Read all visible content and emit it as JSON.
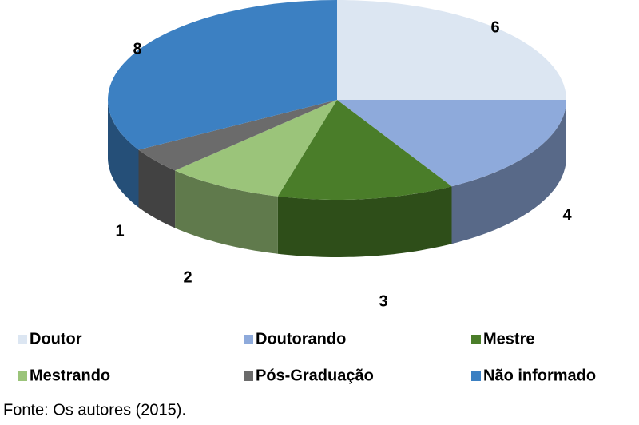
{
  "chart_data": {
    "type": "pie",
    "categories": [
      "Doutor",
      "Doutorando",
      "Mestre",
      "Mestrando",
      "Pós-Graduação",
      "Não informado"
    ],
    "values": [
      6,
      4,
      3,
      2,
      1,
      8
    ],
    "colors": [
      "#dce6f2",
      "#8eaadb",
      "#4a7d29",
      "#9bc47a",
      "#6b6b6b",
      "#3c80c2"
    ],
    "source": "Fonte: Os autores (2015)."
  }
}
